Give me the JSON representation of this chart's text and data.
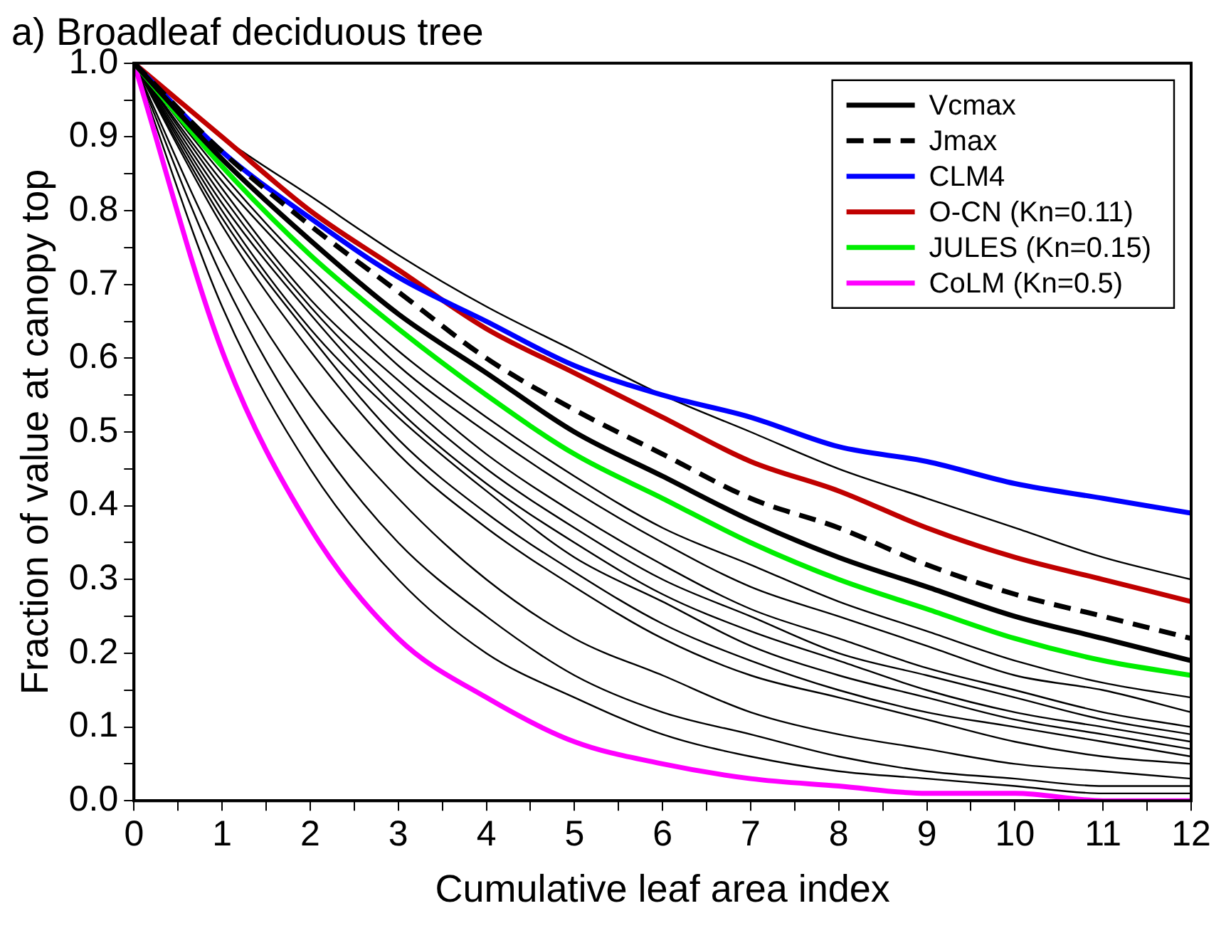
{
  "chart_data": {
    "type": "line",
    "title": "a) Broadleaf deciduous tree",
    "xlabel": "Cumulative leaf area index",
    "ylabel": "Fraction of value at canopy top",
    "x": [
      0,
      1,
      2,
      3,
      4,
      5,
      6,
      7,
      8,
      9,
      10,
      11,
      12
    ],
    "xlim": [
      0,
      12
    ],
    "xticks": [
      0,
      {
        "value": 0.5,
        "label": null
      },
      1,
      {
        "value": 1.5,
        "label": null
      },
      2,
      {
        "value": 2.5,
        "label": null
      },
      3,
      {
        "value": 3.5,
        "label": null
      },
      4,
      {
        "value": 4.5,
        "label": null
      },
      5,
      {
        "value": 5.5,
        "label": null
      },
      6,
      {
        "value": 6.5,
        "label": null
      },
      7,
      {
        "value": 7.5,
        "label": null
      },
      8,
      {
        "value": 8.5,
        "label": null
      },
      9,
      {
        "value": 9.5,
        "label": null
      },
      10,
      {
        "value": 10.5,
        "label": null
      },
      11,
      {
        "value": 11.5,
        "label": null
      },
      12
    ],
    "ylim": [
      0,
      1
    ],
    "yticks": [
      {
        "value": 0,
        "label": "0.0"
      },
      {
        "value": 0.05,
        "label": null
      },
      0.1,
      {
        "value": 0.15,
        "label": null
      },
      0.2,
      {
        "value": 0.25,
        "label": null
      },
      0.3,
      {
        "value": 0.35,
        "label": null
      },
      0.4,
      {
        "value": 0.45,
        "label": null
      },
      0.5,
      {
        "value": 0.55,
        "label": null
      },
      0.6,
      {
        "value": 0.65,
        "label": null
      },
      0.7,
      {
        "value": 0.75,
        "label": null
      },
      0.8,
      {
        "value": 0.85,
        "label": null
      },
      0.9,
      {
        "value": 0.95,
        "label": null
      },
      {
        "value": 1,
        "label": "1.0"
      }
    ],
    "grid": false,
    "legend": "top right",
    "marker": "none",
    "series": [
      {
        "color": "#000000",
        "values": [
          1,
          0.9,
          0.82,
          0.74,
          0.67,
          0.61,
          0.55,
          0.5,
          0.45,
          0.41,
          0.37,
          0.33,
          0.3
        ]
      },
      {
        "color": "#000000",
        "values": [
          1,
          0.85,
          0.72,
          0.61,
          0.52,
          0.44,
          0.37,
          0.32,
          0.27,
          0.23,
          0.19,
          0.16,
          0.14
        ]
      },
      {
        "color": "#000000",
        "values": [
          1,
          0.84,
          0.71,
          0.59,
          0.5,
          0.42,
          0.35,
          0.29,
          0.25,
          0.21,
          0.17,
          0.15,
          0.12
        ]
      },
      {
        "color": "#000000",
        "values": [
          1,
          0.83,
          0.68,
          0.57,
          0.47,
          0.39,
          0.32,
          0.26,
          0.22,
          0.18,
          0.15,
          0.12,
          0.1
        ]
      },
      {
        "color": "#000000",
        "values": [
          1,
          0.82,
          0.67,
          0.55,
          0.45,
          0.37,
          0.3,
          0.25,
          0.2,
          0.17,
          0.14,
          0.11,
          0.09
        ]
      },
      {
        "color": "#000000",
        "values": [
          1,
          0.81,
          0.66,
          0.53,
          0.43,
          0.35,
          0.28,
          0.23,
          0.19,
          0.15,
          0.12,
          0.1,
          0.08
        ]
      },
      {
        "color": "#000000",
        "values": [
          1,
          0.8,
          0.64,
          0.52,
          0.42,
          0.33,
          0.27,
          0.21,
          0.17,
          0.14,
          0.11,
          0.09,
          0.07
        ]
      },
      {
        "color": "#000000",
        "values": [
          1,
          0.79,
          0.63,
          0.49,
          0.39,
          0.31,
          0.24,
          0.19,
          0.15,
          0.12,
          0.1,
          0.08,
          0.06
        ]
      },
      {
        "color": "#000000",
        "values": [
          1,
          0.78,
          0.61,
          0.47,
          0.37,
          0.29,
          0.22,
          0.17,
          0.14,
          0.11,
          0.08,
          0.06,
          0.05
        ]
      },
      {
        "color": "#000000",
        "values": [
          1,
          0.74,
          0.55,
          0.41,
          0.3,
          0.22,
          0.17,
          0.12,
          0.09,
          0.07,
          0.05,
          0.04,
          0.03
        ]
      },
      {
        "color": "#000000",
        "values": [
          1,
          0.71,
          0.5,
          0.35,
          0.25,
          0.17,
          0.12,
          0.09,
          0.06,
          0.04,
          0.03,
          0.02,
          0.02
        ]
      },
      {
        "color": "#000000",
        "values": [
          1,
          0.67,
          0.45,
          0.3,
          0.2,
          0.14,
          0.09,
          0.06,
          0.04,
          0.03,
          0.02,
          0.01,
          0.01
        ]
      },
      {
        "name": "Vcmax",
        "color": "#000000",
        "line_style": "solid",
        "values": [
          1,
          0.87,
          0.76,
          0.66,
          0.58,
          0.5,
          0.44,
          0.38,
          0.33,
          0.29,
          0.25,
          0.22,
          0.19
        ]
      },
      {
        "name": "Jmax",
        "color": "#000000",
        "line_style": "dashed",
        "values": [
          1,
          0.88,
          0.78,
          0.69,
          0.6,
          0.53,
          0.47,
          0.41,
          0.37,
          0.32,
          0.28,
          0.25,
          0.22
        ]
      },
      {
        "name": "CLM4",
        "color": "#0000ff",
        "line_style": "solid",
        "values": [
          1,
          0.88,
          0.79,
          0.71,
          0.65,
          0.59,
          0.55,
          0.52,
          0.48,
          0.46,
          0.43,
          0.41,
          0.39
        ]
      },
      {
        "name": "O-CN (Kn=0.11)",
        "color": "#c00000",
        "line_style": "solid",
        "values": [
          1,
          0.9,
          0.8,
          0.72,
          0.64,
          0.58,
          0.52,
          0.46,
          0.42,
          0.37,
          0.33,
          0.3,
          0.27
        ]
      },
      {
        "name": "JULES (Kn=0.15)",
        "color": "#00ee00",
        "line_style": "solid",
        "values": [
          1,
          0.86,
          0.74,
          0.64,
          0.55,
          0.47,
          0.41,
          0.35,
          0.3,
          0.26,
          0.22,
          0.19,
          0.17
        ]
      },
      {
        "name": "CoLM (Kn=0.5)",
        "color": "#ff00ff",
        "line_style": "solid",
        "values": [
          1,
          0.61,
          0.37,
          0.22,
          0.14,
          0.08,
          0.05,
          0.03,
          0.02,
          0.01,
          0.01,
          0.0,
          0.0
        ]
      }
    ]
  }
}
